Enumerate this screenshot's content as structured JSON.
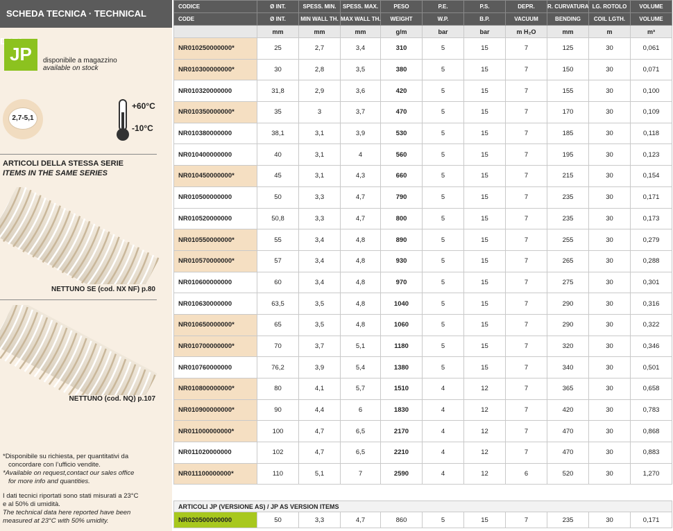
{
  "header": {
    "title": "SCHEDA TECNICA · TECHNICAL DATA"
  },
  "stock": {
    "logo": "JP",
    "line1": "disponibile a magazzino",
    "line2": "available on stock"
  },
  "badge": "2,7-5,1",
  "temperature": {
    "max": "+60°C",
    "min": "-10°C"
  },
  "series": {
    "title": "ARTICOLI DELLA STESSA SERIE",
    "subtitle": "ITEMS IN THE SAME SERIES",
    "items": [
      {
        "caption": "NETTUNO SE (cod. NX NF) p.80"
      },
      {
        "caption": "NETTUNO (cod. NQ) p.107"
      }
    ]
  },
  "notes": {
    "availability": [
      "*Disponibile su richiesta, per quantitativi da",
      "concordare con l’ufficio vendite.",
      "*Available on request,contact our sales office",
      "for more info and quantities."
    ],
    "measurement": [
      "I dati tecnici riportati sono stati misurati a 23°C",
      "e al 50% di umidità.",
      "The technical data here reported have been",
      "measured at 23°C with 50% umidity."
    ]
  },
  "table": {
    "columns": [
      {
        "it": "CODICE",
        "en": "CODE",
        "unit": ""
      },
      {
        "it": "Ø INT.",
        "en": "Ø INT.",
        "unit": "mm"
      },
      {
        "it": "SPESS. MIN.",
        "en": "MIN WALL TH.",
        "unit": "mm"
      },
      {
        "it": "SPESS. MAX.",
        "en": "MAX WALL TH.",
        "unit": "mm"
      },
      {
        "it": "PESO",
        "en": "WEIGHT",
        "unit": "g/m"
      },
      {
        "it": "P.E.",
        "en": "W.P.",
        "unit": "bar"
      },
      {
        "it": "P.S.",
        "en": "B.P.",
        "unit": "bar"
      },
      {
        "it": "DEPR.",
        "en": "VACUUM",
        "unit": "m H₂O"
      },
      {
        "it": "R. CURVATURA",
        "en": "BENDING",
        "unit": "mm"
      },
      {
        "it": "LG. ROTOLO",
        "en": "COIL LGTH.",
        "unit": "m"
      },
      {
        "it": "VOLUME",
        "en": "VOLUME",
        "unit": "m³"
      }
    ],
    "rows": [
      [
        "NR010250000000*",
        "25",
        "2,7",
        "3,4",
        "310",
        "5",
        "15",
        "7",
        "125",
        "30",
        "0,061"
      ],
      [
        "NR010300000000*",
        "30",
        "2,8",
        "3,5",
        "380",
        "5",
        "15",
        "7",
        "150",
        "30",
        "0,071"
      ],
      [
        "NR010320000000",
        "31,8",
        "2,9",
        "3,6",
        "420",
        "5",
        "15",
        "7",
        "155",
        "30",
        "0,100"
      ],
      [
        "NR010350000000*",
        "35",
        "3",
        "3,7",
        "470",
        "5",
        "15",
        "7",
        "170",
        "30",
        "0,109"
      ],
      [
        "NR010380000000",
        "38,1",
        "3,1",
        "3,9",
        "530",
        "5",
        "15",
        "7",
        "185",
        "30",
        "0,118"
      ],
      [
        "NR010400000000",
        "40",
        "3,1",
        "4",
        "560",
        "5",
        "15",
        "7",
        "195",
        "30",
        "0,123"
      ],
      [
        "NR010450000000*",
        "45",
        "3,1",
        "4,3",
        "660",
        "5",
        "15",
        "7",
        "215",
        "30",
        "0,154"
      ],
      [
        "NR010500000000",
        "50",
        "3,3",
        "4,7",
        "790",
        "5",
        "15",
        "7",
        "235",
        "30",
        "0,171"
      ],
      [
        "NR010520000000",
        "50,8",
        "3,3",
        "4,7",
        "800",
        "5",
        "15",
        "7",
        "235",
        "30",
        "0,173"
      ],
      [
        "NR010550000000*",
        "55",
        "3,4",
        "4,8",
        "890",
        "5",
        "15",
        "7",
        "255",
        "30",
        "0,279"
      ],
      [
        "NR010570000000*",
        "57",
        "3,4",
        "4,8",
        "930",
        "5",
        "15",
        "7",
        "265",
        "30",
        "0,288"
      ],
      [
        "NR010600000000",
        "60",
        "3,4",
        "4,8",
        "970",
        "5",
        "15",
        "7",
        "275",
        "30",
        "0,301"
      ],
      [
        "NR010630000000",
        "63,5",
        "3,5",
        "4,8",
        "1040",
        "5",
        "15",
        "7",
        "290",
        "30",
        "0,316"
      ],
      [
        "NR010650000000*",
        "65",
        "3,5",
        "4,8",
        "1060",
        "5",
        "15",
        "7",
        "290",
        "30",
        "0,322"
      ],
      [
        "NR010700000000*",
        "70",
        "3,7",
        "5,1",
        "1180",
        "5",
        "15",
        "7",
        "320",
        "30",
        "0,346"
      ],
      [
        "NR010760000000",
        "76,2",
        "3,9",
        "5,4",
        "1380",
        "5",
        "15",
        "7",
        "340",
        "30",
        "0,501"
      ],
      [
        "NR010800000000*",
        "80",
        "4,1",
        "5,7",
        "1510",
        "4",
        "12",
        "7",
        "365",
        "30",
        "0,658"
      ],
      [
        "NR010900000000*",
        "90",
        "4,4",
        "6",
        "1830",
        "4",
        "12",
        "7",
        "420",
        "30",
        "0,783"
      ],
      [
        "NR011000000000*",
        "100",
        "4,7",
        "6,5",
        "2170",
        "4",
        "12",
        "7",
        "470",
        "30",
        "0,868"
      ],
      [
        "NR011020000000",
        "102",
        "4,7",
        "6,5",
        "2210",
        "4",
        "12",
        "7",
        "470",
        "30",
        "0,883"
      ],
      [
        "NR011100000000*",
        "110",
        "5,1",
        "7",
        "2590",
        "4",
        "12",
        "6",
        "520",
        "30",
        "1,270"
      ]
    ]
  },
  "as_version": {
    "title": "ARTICOLI JP (VERSIONE AS) / JP AS VERSION ITEMS",
    "rows": [
      [
        "NR020500000000",
        "50",
        "3,3",
        "4,7",
        "860",
        "5",
        "15",
        "7",
        "235",
        "30",
        "0,171"
      ]
    ]
  }
}
